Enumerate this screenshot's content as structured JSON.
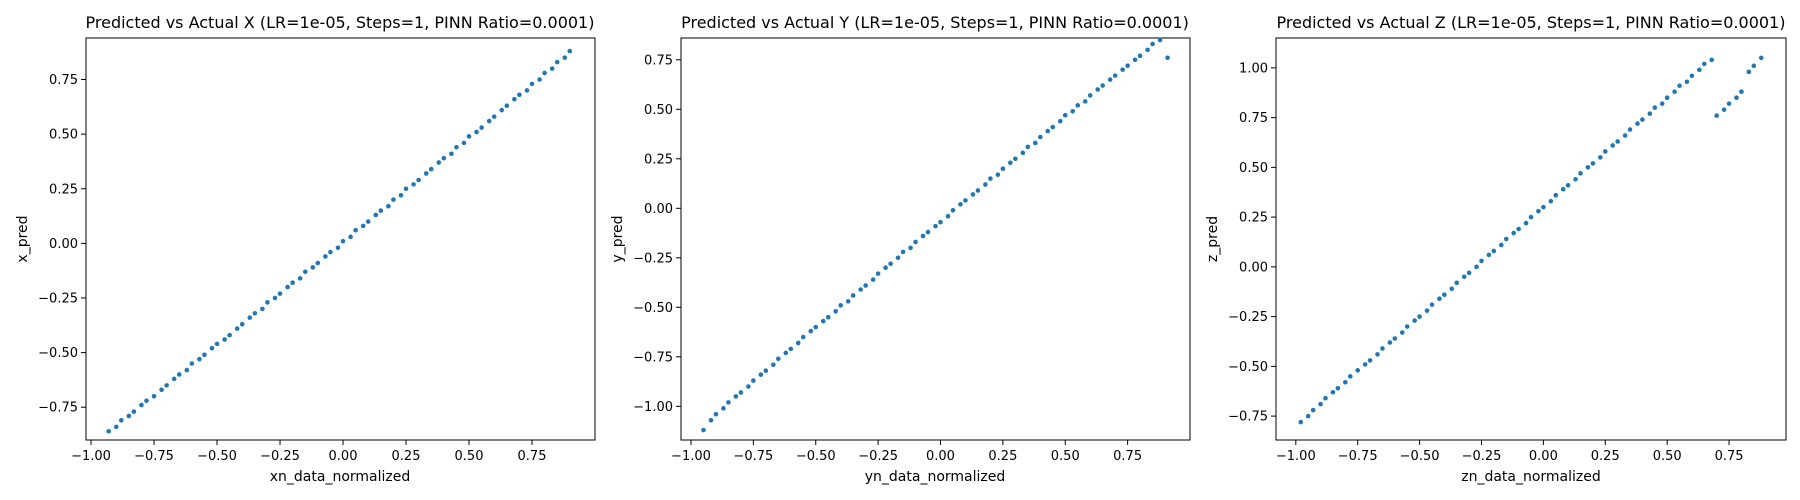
{
  "colors": {
    "marker": "#1f77b4",
    "axes": "#000000",
    "background": "#ffffff"
  },
  "chart_data": [
    {
      "type": "scatter",
      "title": "Predicted vs Actual X (LR=1e-05, Steps=1, PINN Ratio=0.0001)",
      "xlabel": "xn_data_normalized",
      "ylabel": "x_pred",
      "xlim": [
        -1.02,
        1.0
      ],
      "ylim": [
        -0.9,
        0.94
      ],
      "xticks": [
        -1.0,
        -0.75,
        -0.5,
        -0.25,
        0.0,
        0.25,
        0.5,
        0.75
      ],
      "xtick_labels": [
        "−1.00",
        "−0.75",
        "−0.50",
        "−0.25",
        "0.00",
        "0.25",
        "0.50",
        "0.75"
      ],
      "yticks": [
        -0.75,
        -0.5,
        -0.25,
        0.0,
        0.25,
        0.5,
        0.75
      ],
      "ytick_labels": [
        "−0.75",
        "−0.50",
        "−0.25",
        "0.00",
        "0.25",
        "0.50",
        "0.75"
      ],
      "x": [
        -0.93,
        -0.9,
        -0.88,
        -0.85,
        -0.83,
        -0.8,
        -0.78,
        -0.75,
        -0.72,
        -0.7,
        -0.67,
        -0.65,
        -0.62,
        -0.6,
        -0.57,
        -0.55,
        -0.52,
        -0.5,
        -0.47,
        -0.45,
        -0.42,
        -0.4,
        -0.37,
        -0.35,
        -0.32,
        -0.3,
        -0.27,
        -0.25,
        -0.22,
        -0.2,
        -0.17,
        -0.15,
        -0.12,
        -0.1,
        -0.07,
        -0.05,
        -0.02,
        0.0,
        0.03,
        0.05,
        0.08,
        0.1,
        0.13,
        0.15,
        0.18,
        0.2,
        0.23,
        0.25,
        0.28,
        0.3,
        0.33,
        0.35,
        0.38,
        0.4,
        0.43,
        0.45,
        0.48,
        0.5,
        0.53,
        0.55,
        0.58,
        0.6,
        0.63,
        0.65,
        0.68,
        0.7,
        0.73,
        0.75,
        0.78,
        0.8,
        0.83,
        0.85,
        0.88,
        0.9
      ],
      "y": [
        -0.86,
        -0.84,
        -0.81,
        -0.79,
        -0.77,
        -0.74,
        -0.72,
        -0.7,
        -0.67,
        -0.65,
        -0.62,
        -0.6,
        -0.58,
        -0.55,
        -0.53,
        -0.51,
        -0.48,
        -0.46,
        -0.44,
        -0.42,
        -0.39,
        -0.37,
        -0.34,
        -0.32,
        -0.3,
        -0.27,
        -0.25,
        -0.23,
        -0.2,
        -0.18,
        -0.16,
        -0.13,
        -0.11,
        -0.09,
        -0.06,
        -0.04,
        -0.02,
        0.01,
        0.03,
        0.06,
        0.08,
        0.1,
        0.13,
        0.15,
        0.17,
        0.2,
        0.22,
        0.25,
        0.27,
        0.29,
        0.32,
        0.34,
        0.37,
        0.39,
        0.41,
        0.44,
        0.46,
        0.49,
        0.51,
        0.53,
        0.56,
        0.58,
        0.61,
        0.63,
        0.66,
        0.68,
        0.7,
        0.73,
        0.75,
        0.78,
        0.8,
        0.83,
        0.85,
        0.88
      ]
    },
    {
      "type": "scatter",
      "title": "Predicted vs Actual Y (LR=1e-05, Steps=1, PINN Ratio=0.0001)",
      "xlabel": "yn_data_normalized",
      "ylabel": "y_pred",
      "xlim": [
        -1.04,
        1.0
      ],
      "ylim": [
        -1.17,
        0.86
      ],
      "xticks": [
        -1.0,
        -0.75,
        -0.5,
        -0.25,
        0.0,
        0.25,
        0.5,
        0.75
      ],
      "xtick_labels": [
        "−1.00",
        "−0.75",
        "−0.50",
        "−0.25",
        "0.00",
        "0.25",
        "0.50",
        "0.75"
      ],
      "yticks": [
        -1.0,
        -0.75,
        -0.5,
        -0.25,
        0.0,
        0.25,
        0.5,
        0.75
      ],
      "ytick_labels": [
        "−1.00",
        "−0.75",
        "−0.50",
        "−0.25",
        "0.00",
        "0.25",
        "0.50",
        "0.75"
      ],
      "x": [
        -0.95,
        -0.92,
        -0.9,
        -0.87,
        -0.85,
        -0.82,
        -0.8,
        -0.77,
        -0.75,
        -0.72,
        -0.7,
        -0.67,
        -0.65,
        -0.62,
        -0.6,
        -0.57,
        -0.55,
        -0.52,
        -0.5,
        -0.47,
        -0.45,
        -0.42,
        -0.4,
        -0.37,
        -0.35,
        -0.32,
        -0.3,
        -0.27,
        -0.25,
        -0.22,
        -0.2,
        -0.17,
        -0.15,
        -0.12,
        -0.1,
        -0.07,
        -0.05,
        -0.02,
        0.0,
        0.03,
        0.05,
        0.08,
        0.1,
        0.13,
        0.15,
        0.18,
        0.2,
        0.23,
        0.25,
        0.28,
        0.3,
        0.33,
        0.35,
        0.38,
        0.4,
        0.43,
        0.45,
        0.48,
        0.5,
        0.53,
        0.55,
        0.58,
        0.6,
        0.63,
        0.65,
        0.68,
        0.7,
        0.73,
        0.75,
        0.78,
        0.8,
        0.83,
        0.85,
        0.88,
        0.91
      ],
      "y": [
        -1.12,
        -1.07,
        -1.04,
        -1.01,
        -0.98,
        -0.95,
        -0.93,
        -0.9,
        -0.87,
        -0.84,
        -0.82,
        -0.79,
        -0.76,
        -0.73,
        -0.71,
        -0.68,
        -0.65,
        -0.62,
        -0.6,
        -0.57,
        -0.55,
        -0.52,
        -0.49,
        -0.47,
        -0.44,
        -0.41,
        -0.39,
        -0.36,
        -0.33,
        -0.3,
        -0.28,
        -0.25,
        -0.22,
        -0.2,
        -0.17,
        -0.14,
        -0.12,
        -0.09,
        -0.07,
        -0.04,
        -0.01,
        0.02,
        0.04,
        0.07,
        0.09,
        0.12,
        0.15,
        0.17,
        0.2,
        0.23,
        0.25,
        0.28,
        0.31,
        0.33,
        0.36,
        0.39,
        0.41,
        0.44,
        0.47,
        0.49,
        0.52,
        0.54,
        0.57,
        0.6,
        0.62,
        0.65,
        0.67,
        0.7,
        0.72,
        0.75,
        0.77,
        0.8,
        0.83,
        0.85,
        0.76
      ]
    },
    {
      "type": "scatter",
      "title": "Predicted vs Actual Z (LR=1e-05, Steps=1, PINN Ratio=0.0001)",
      "xlabel": "zn_data_normalized",
      "ylabel": "z_pred",
      "xlim": [
        -1.08,
        0.98
      ],
      "ylim": [
        -0.87,
        1.15
      ],
      "xticks": [
        -1.0,
        -0.75,
        -0.5,
        -0.25,
        0.0,
        0.25,
        0.5,
        0.75
      ],
      "xtick_labels": [
        "−1.00",
        "−0.75",
        "−0.50",
        "−0.25",
        "0.00",
        "0.25",
        "0.50",
        "0.75"
      ],
      "yticks": [
        -0.75,
        -0.5,
        -0.25,
        0.0,
        0.25,
        0.5,
        0.75,
        1.0
      ],
      "ytick_labels": [
        "−0.75",
        "−0.50",
        "−0.25",
        "0.00",
        "0.25",
        "0.50",
        "0.75",
        "1.00"
      ],
      "x": [
        -0.98,
        -0.95,
        -0.93,
        -0.9,
        -0.88,
        -0.85,
        -0.83,
        -0.8,
        -0.78,
        -0.75,
        -0.72,
        -0.7,
        -0.67,
        -0.65,
        -0.62,
        -0.6,
        -0.57,
        -0.55,
        -0.52,
        -0.5,
        -0.47,
        -0.45,
        -0.42,
        -0.4,
        -0.37,
        -0.35,
        -0.32,
        -0.3,
        -0.27,
        -0.25,
        -0.22,
        -0.2,
        -0.17,
        -0.15,
        -0.12,
        -0.1,
        -0.07,
        -0.05,
        -0.02,
        0.0,
        0.03,
        0.05,
        0.08,
        0.1,
        0.13,
        0.15,
        0.18,
        0.2,
        0.23,
        0.25,
        0.28,
        0.3,
        0.33,
        0.35,
        0.38,
        0.4,
        0.43,
        0.45,
        0.48,
        0.5,
        0.53,
        0.55,
        0.58,
        0.6,
        0.63,
        0.65,
        0.68,
        0.7,
        0.73,
        0.75,
        0.78,
        0.8,
        0.83,
        0.85,
        0.88
      ],
      "y": [
        -0.78,
        -0.75,
        -0.72,
        -0.69,
        -0.66,
        -0.63,
        -0.61,
        -0.58,
        -0.55,
        -0.52,
        -0.49,
        -0.47,
        -0.44,
        -0.41,
        -0.38,
        -0.36,
        -0.33,
        -0.3,
        -0.27,
        -0.25,
        -0.22,
        -0.19,
        -0.16,
        -0.14,
        -0.11,
        -0.08,
        -0.05,
        -0.03,
        0.0,
        0.03,
        0.06,
        0.08,
        0.11,
        0.14,
        0.17,
        0.19,
        0.22,
        0.25,
        0.28,
        0.3,
        0.33,
        0.36,
        0.39,
        0.41,
        0.44,
        0.47,
        0.5,
        0.52,
        0.55,
        0.58,
        0.61,
        0.63,
        0.66,
        0.69,
        0.72,
        0.74,
        0.77,
        0.8,
        0.82,
        0.85,
        0.88,
        0.91,
        0.93,
        0.96,
        0.99,
        1.02,
        1.04,
        0.76,
        0.79,
        0.82,
        0.85,
        0.88,
        0.98,
        1.01,
        1.05
      ]
    }
  ]
}
